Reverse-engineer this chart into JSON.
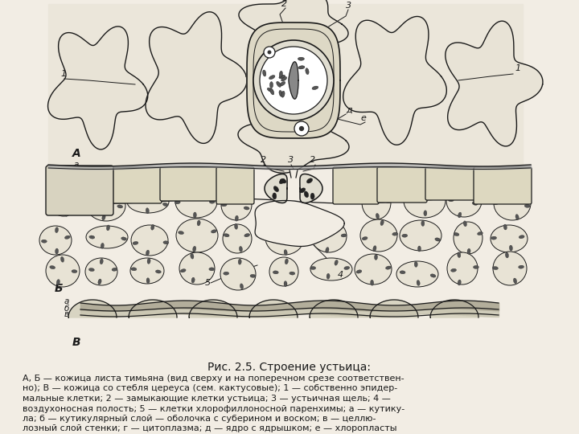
{
  "title": "Рис. 2.5. Строение устьица:",
  "caption_line1": "А, Б — кожица листа тимьяна (вид сверху и на поперечном срезе соответствен-",
  "caption_line2": "но); В — кожица со стебля цереуса (сем. кактусовые); 1 — собственно эпидер-",
  "caption_line3": "мальные клетки; 2 — замыкающие клетки устьица; 3 — устьичная щель; 4 —",
  "caption_line4": "воздухоносная полость; 5 — клетки хлорофиллоносной паренхимы; а — кутику-",
  "caption_line5": "ла; б — кутикулярный слой — оболочка с суберином и воском; в — целлю-",
  "caption_line6": "лозный слой стенки; г — цитоплазма; д — ядро с ядрышком; е — хлоропласты",
  "bg_color": "#f2ede4",
  "line_color": "#1a1a1a",
  "label_A": "А",
  "label_B": "Б",
  "label_C": "В",
  "font_size_caption": 8.0,
  "font_size_title": 10,
  "font_size_labels": 9
}
